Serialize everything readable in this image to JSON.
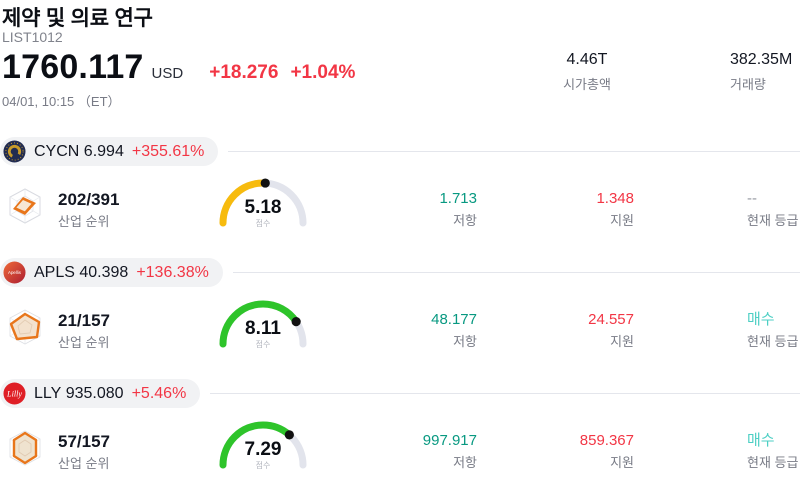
{
  "header": {
    "title": "제약 및 의료 연구",
    "symbol": "LIST1012",
    "price": "1760.117",
    "currency": "USD",
    "change": "+18.276",
    "change_pct": "+1.04%",
    "datetime": "04/01, 10:15 （ET）",
    "market_cap": {
      "value": "4.46T",
      "label": "시가총액"
    },
    "volume": {
      "value": "382.35M",
      "label": "거래량"
    }
  },
  "colors": {
    "up": "#089981",
    "down": "#f23645",
    "buy": "#4dcfc4",
    "neutral": "#9598a1",
    "gauge_track": "#e2e4ec",
    "gauge_yellow": "#f7bb0e",
    "gauge_green": "#2ec42a"
  },
  "rows": [
    {
      "ticker": "CYCN",
      "price": "6.994",
      "change_pct": "+355.61%",
      "rank": "202/391",
      "rank_label": "산업 순위",
      "score": 5.18,
      "score_label": "점수",
      "gauge_color": "#f7bb0e",
      "resistance": "1.713",
      "resistance_label": "저항",
      "support": "1.348",
      "support_label": "지원",
      "rating": "--",
      "rating_color": "#9598a1",
      "rating_label": "현재 등급"
    },
    {
      "ticker": "APLS",
      "price": "40.398",
      "change_pct": "+136.38%",
      "logo_text": "Apellis",
      "rank": "21/157",
      "rank_label": "산업 순위",
      "score": 8.11,
      "score_label": "점수",
      "gauge_color": "#2ec42a",
      "resistance": "48.177",
      "resistance_label": "저항",
      "support": "24.557",
      "support_label": "지원",
      "rating": "매수",
      "rating_color": "#4dcfc4",
      "rating_label": "현재 등급"
    },
    {
      "ticker": "LLY",
      "price": "935.080",
      "change_pct": "+5.46%",
      "logo_text": "Lilly",
      "rank": "57/157",
      "rank_label": "산업 순위",
      "score": 7.29,
      "score_label": "점수",
      "gauge_color": "#2ec42a",
      "resistance": "997.917",
      "resistance_label": "저항",
      "support": "859.367",
      "support_label": "지원",
      "rating": "매수",
      "rating_color": "#4dcfc4",
      "rating_label": "현재 등급"
    }
  ]
}
